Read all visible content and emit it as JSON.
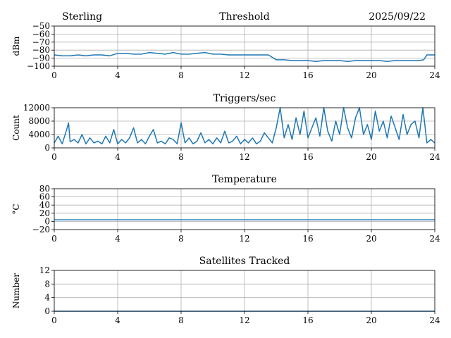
{
  "header": {
    "station": "Sterling",
    "date": "2025/09/22"
  },
  "colors": {
    "series": "#1f77b4"
  },
  "chart_data": [
    {
      "type": "line",
      "title": "Threshold",
      "xlabel": "",
      "ylabel": "dBm",
      "xlim": [
        0,
        24
      ],
      "ylim": [
        -100,
        -50
      ],
      "xticks": [
        0,
        4,
        8,
        12,
        16,
        20,
        24
      ],
      "yticks": [
        -100,
        -90,
        -80,
        -70,
        -60,
        -50
      ],
      "grid": true,
      "series": [
        {
          "x": [
            0,
            0.5,
            1,
            1.5,
            2,
            2.5,
            3,
            3.5,
            4,
            4.5,
            5,
            5.5,
            6,
            6.5,
            7,
            7.5,
            8,
            8.5,
            9,
            9.5,
            10,
            10.5,
            11,
            11.5,
            12,
            12.5,
            13,
            13.5,
            14,
            14.5,
            15,
            15.5,
            16,
            16.5,
            17,
            17.5,
            18,
            18.5,
            19,
            19.5,
            20,
            20.5,
            21,
            21.5,
            22,
            22.5,
            23,
            23.3,
            23.5,
            24
          ],
          "values": [
            -86,
            -87,
            -87,
            -86,
            -87,
            -86,
            -86,
            -87,
            -84,
            -84,
            -85,
            -85,
            -83,
            -84,
            -85,
            -83,
            -85,
            -85,
            -84,
            -83,
            -85,
            -85,
            -86,
            -86,
            -86,
            -86,
            -86,
            -86,
            -92,
            -92,
            -93,
            -93,
            -93,
            -94,
            -93,
            -93,
            -93,
            -94,
            -93,
            -93,
            -93,
            -93,
            -94,
            -93,
            -93,
            -93,
            -93,
            -92,
            -86,
            -86
          ]
        }
      ]
    },
    {
      "type": "line",
      "title": "Triggers/sec",
      "xlabel": "",
      "ylabel": "Count",
      "xlim": [
        0,
        24
      ],
      "ylim": [
        0,
        12000
      ],
      "xticks": [
        0,
        4,
        8,
        12,
        16,
        20,
        24
      ],
      "yticks": [
        0,
        4000,
        8000,
        12000
      ],
      "grid": true,
      "series": [
        {
          "x": [
            0,
            0.25,
            0.5,
            0.75,
            0.9,
            1,
            1.25,
            1.5,
            1.75,
            2,
            2.25,
            2.5,
            2.75,
            3,
            3.25,
            3.5,
            3.75,
            4,
            4.25,
            4.5,
            4.75,
            5,
            5.25,
            5.5,
            5.75,
            6,
            6.25,
            6.5,
            6.75,
            7,
            7.25,
            7.5,
            7.75,
            8,
            8.25,
            8.5,
            8.75,
            9,
            9.25,
            9.5,
            9.75,
            10,
            10.25,
            10.5,
            10.75,
            11,
            11.25,
            11.5,
            11.75,
            12,
            12.25,
            12.5,
            12.75,
            13,
            13.25,
            13.5,
            13.75,
            14,
            14.25,
            14.5,
            14.75,
            15,
            15.25,
            15.5,
            15.75,
            16,
            16.25,
            16.5,
            16.75,
            17,
            17.25,
            17.5,
            17.75,
            18,
            18.25,
            18.5,
            18.75,
            19,
            19.25,
            19.5,
            19.75,
            20,
            20.25,
            20.5,
            20.75,
            21,
            21.25,
            21.5,
            21.75,
            22,
            22.25,
            22.5,
            22.75,
            23,
            23.25,
            23.5,
            23.75,
            24
          ],
          "values": [
            1500,
            3500,
            1200,
            5000,
            7500,
            1800,
            2500,
            1500,
            4000,
            1200,
            3000,
            1500,
            2000,
            1200,
            3500,
            1500,
            5500,
            1200,
            2500,
            1500,
            3000,
            6000,
            1500,
            2500,
            1200,
            3500,
            5500,
            1500,
            2000,
            1200,
            3000,
            2500,
            1200,
            7500,
            1500,
            3000,
            1200,
            2000,
            4500,
            1500,
            2500,
            1200,
            3000,
            1500,
            5000,
            1500,
            2000,
            3500,
            1200,
            2500,
            1500,
            3000,
            1200,
            2000,
            4500,
            3000,
            1500,
            6000,
            12000,
            3000,
            7000,
            2500,
            9000,
            4000,
            11000,
            3000,
            6000,
            9000,
            3500,
            12000,
            5000,
            2000,
            8000,
            4000,
            12000,
            6000,
            3000,
            9000,
            12000,
            4000,
            7000,
            2500,
            11000,
            5000,
            8000,
            3000,
            9500,
            6000,
            2500,
            10000,
            4000,
            7000,
            8000,
            3000,
            12000,
            1500,
            2500,
            1500
          ]
        }
      ]
    },
    {
      "type": "line",
      "title": "Temperature",
      "xlabel": "",
      "ylabel": "°C",
      "xlim": [
        0,
        24
      ],
      "ylim": [
        -20,
        80
      ],
      "xticks": [
        0,
        4,
        8,
        12,
        16,
        20,
        24
      ],
      "yticks": [
        -20,
        0,
        20,
        40,
        60,
        80
      ],
      "grid": true,
      "series": [
        {
          "x": [
            0,
            24
          ],
          "values": [
            4,
            4
          ]
        }
      ]
    },
    {
      "type": "line",
      "title": "Satellites Tracked",
      "xlabel": "",
      "ylabel": "Number",
      "xlim": [
        0,
        24
      ],
      "ylim": [
        0,
        12
      ],
      "xticks": [
        0,
        4,
        8,
        12,
        16,
        20,
        24
      ],
      "yticks": [
        0,
        4,
        8,
        12
      ],
      "grid": true,
      "series": [
        {
          "x": [
            0,
            24
          ],
          "values": [
            0,
            0
          ]
        }
      ]
    }
  ]
}
